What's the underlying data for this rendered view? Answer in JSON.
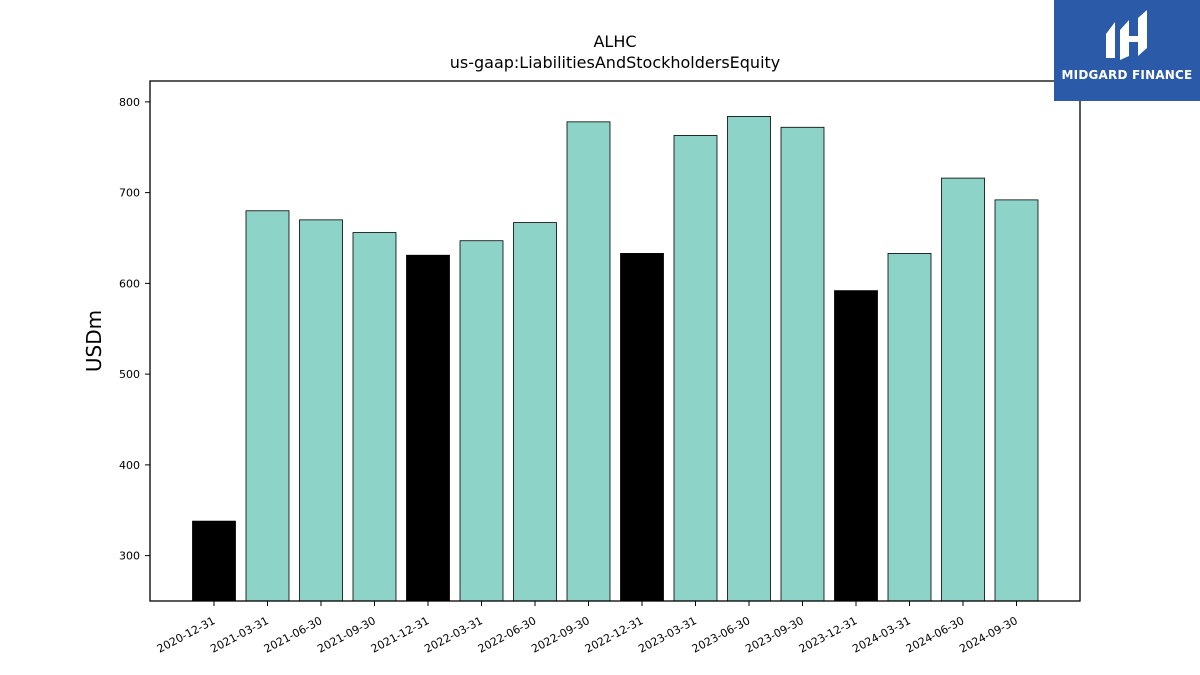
{
  "title": "ALHC",
  "subtitle": "us-gaap:LiabilitiesAndStockholdersEquity",
  "brand": {
    "name": "MIDGARD FINANCE",
    "bg_color": "#2b5ba8",
    "icon": "midgard-logo-icon"
  },
  "chart_data": {
    "type": "bar",
    "categories": [
      "2020-12-31",
      "2021-03-31",
      "2021-06-30",
      "2021-09-30",
      "2021-12-31",
      "2022-03-31",
      "2022-06-30",
      "2022-09-30",
      "2022-12-31",
      "2023-03-31",
      "2023-06-30",
      "2023-09-30",
      "2023-12-31",
      "2024-03-31",
      "2024-06-30",
      "2024-09-30"
    ],
    "values": [
      338,
      680,
      670,
      656,
      631,
      647,
      667,
      778,
      633,
      763,
      784,
      772,
      592,
      633,
      716,
      692
    ],
    "bar_colors": [
      "#000000",
      "#8dd3c7",
      "#8dd3c7",
      "#8dd3c7",
      "#000000",
      "#8dd3c7",
      "#8dd3c7",
      "#8dd3c7",
      "#000000",
      "#8dd3c7",
      "#8dd3c7",
      "#8dd3c7",
      "#000000",
      "#8dd3c7",
      "#8dd3c7",
      "#8dd3c7"
    ],
    "title": "ALHC",
    "subtitle": "us-gaap:LiabilitiesAndStockholdersEquity",
    "xlabel": "",
    "ylabel": "USDm",
    "ylim": [
      250,
      823
    ],
    "yticks": [
      300,
      400,
      500,
      600,
      700,
      800
    ],
    "grid": false,
    "legend": "none"
  }
}
